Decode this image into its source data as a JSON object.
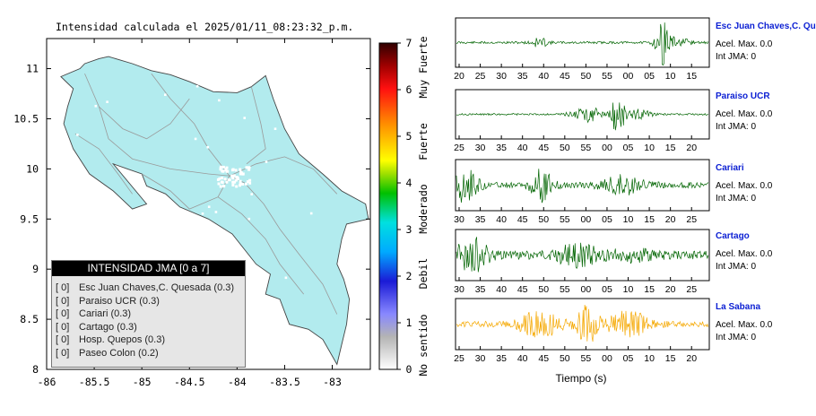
{
  "title": "Intensidad calculada el 2025/01/11_08:23:32_p.m.",
  "map": {
    "xticks": [
      -86,
      -85.5,
      -85,
      -84.5,
      -84,
      -83.5,
      -83
    ],
    "yticks": [
      8,
      8.5,
      9,
      9.5,
      10,
      10.5,
      11
    ],
    "xlim": [
      -86,
      -82.6
    ],
    "ylim": [
      8,
      11.3
    ],
    "land_color": "#b2ebee"
  },
  "colorbar": {
    "ticks": [
      "0",
      "1",
      "2",
      "3",
      "4",
      "5",
      "6",
      "7"
    ],
    "labels": [
      "No sentido",
      "Debil",
      "Moderado",
      "Fuerte",
      "Muy Fuerte"
    ]
  },
  "legend": {
    "title": "INTENSIDAD JMA [0 a 7]",
    "items": [
      {
        "level": "[ 0]",
        "label": "Esc Juan Chaves,C. Quesada (0.3)"
      },
      {
        "level": "[ 0]",
        "label": "Paraiso UCR (0.3)"
      },
      {
        "level": "[ 0]",
        "label": "Cariari (0.3)"
      },
      {
        "level": "[ 0]",
        "label": "Cartago (0.3)"
      },
      {
        "level": "[ 0]",
        "label": "Hosp. Quepos (0.3)"
      },
      {
        "level": "[ 0]",
        "label": "Paseo Colon (0.2)"
      }
    ]
  },
  "chart_data": [
    {
      "type": "map",
      "title": "Intensidad calculada el 2025/01/11_08:23:32_p.m.",
      "xlim": [
        -86,
        -82.6
      ],
      "ylim": [
        8,
        11.3
      ],
      "legend": "bottom-left"
    },
    {
      "type": "line",
      "name": "Esc Juan Chaves,C. Qu",
      "x_ticks": [
        "20",
        "25",
        "30",
        "35",
        "40",
        "45",
        "50",
        "55",
        "00",
        "05",
        "10",
        "15"
      ],
      "color": "#006400",
      "acel_max": "Acel. Max. 0.0",
      "int_jma": "Int JMA: 0"
    },
    {
      "type": "line",
      "name": "Paraiso UCR",
      "x_ticks": [
        "25",
        "30",
        "35",
        "40",
        "45",
        "50",
        "55",
        "00",
        "05",
        "10",
        "15",
        "20"
      ],
      "color": "#006400",
      "acel_max": "Acel. Max. 0.0",
      "int_jma": "Int JMA: 0"
    },
    {
      "type": "line",
      "name": "Cariari",
      "x_ticks": [
        "30",
        "35",
        "40",
        "45",
        "50",
        "55",
        "00",
        "05",
        "10",
        "15",
        "20",
        "25"
      ],
      "color": "#006400",
      "acel_max": "Acel. Max. 0.0",
      "int_jma": "Int JMA: 0"
    },
    {
      "type": "line",
      "name": "Cartago",
      "x_ticks": [
        "30",
        "35",
        "40",
        "45",
        "50",
        "55",
        "00",
        "05",
        "10",
        "15",
        "20",
        "25"
      ],
      "color": "#006400",
      "acel_max": "Acel. Max. 0.0",
      "int_jma": "Int JMA: 0"
    },
    {
      "type": "line",
      "name": "La Sabana",
      "x_ticks": [
        "25",
        "30",
        "35",
        "40",
        "45",
        "50",
        "55",
        "00",
        "05",
        "10",
        "15",
        "20"
      ],
      "color": "#f5a800",
      "acel_max": "Acel. Max. 0.0",
      "int_jma": "Int JMA: 0",
      "xlabel": "Tiempo (s)"
    }
  ]
}
